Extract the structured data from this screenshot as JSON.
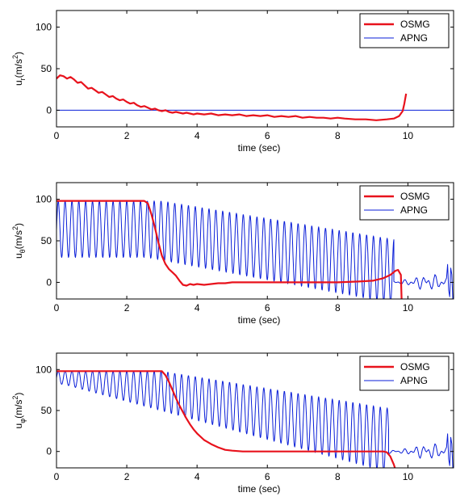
{
  "colors": {
    "osmg": "#e8121c",
    "apng": "#0a1ed8",
    "axis": "#000000",
    "background": "#ffffff"
  },
  "chart_data": [
    {
      "type": "line",
      "xlabel": "time (sec)",
      "ylabel": {
        "base": "u",
        "sub": "r",
        "unit": "(m/s",
        "sup": "2",
        "close": ")"
      },
      "xlim": [
        0,
        11.3
      ],
      "ylim": [
        -20,
        120
      ],
      "xticks": [
        "0",
        "2",
        "4",
        "6",
        "8",
        "10"
      ],
      "yticks": [
        "0",
        "50",
        "100"
      ],
      "legend": {
        "position": "top-right",
        "entries": [
          "OSMG",
          "APNG"
        ]
      },
      "series": [
        {
          "name": "OSMG",
          "points": [
            [
              0,
              38
            ],
            [
              0.1,
              42
            ],
            [
              0.2,
              41
            ],
            [
              0.3,
              38
            ],
            [
              0.4,
              40
            ],
            [
              0.5,
              37
            ],
            [
              0.6,
              33
            ],
            [
              0.7,
              34
            ],
            [
              0.8,
              30
            ],
            [
              0.9,
              26
            ],
            [
              1.0,
              27
            ],
            [
              1.1,
              24
            ],
            [
              1.2,
              21
            ],
            [
              1.3,
              22
            ],
            [
              1.4,
              19
            ],
            [
              1.5,
              16
            ],
            [
              1.6,
              17
            ],
            [
              1.7,
              14
            ],
            [
              1.8,
              12
            ],
            [
              1.9,
              13
            ],
            [
              2.0,
              10
            ],
            [
              2.1,
              8
            ],
            [
              2.2,
              9
            ],
            [
              2.3,
              6
            ],
            [
              2.4,
              4
            ],
            [
              2.5,
              5
            ],
            [
              2.6,
              3
            ],
            [
              2.7,
              1
            ],
            [
              2.8,
              2
            ],
            [
              2.9,
              0
            ],
            [
              3.0,
              -1
            ],
            [
              3.1,
              0
            ],
            [
              3.2,
              -2
            ],
            [
              3.3,
              -3
            ],
            [
              3.4,
              -2
            ],
            [
              3.6,
              -4
            ],
            [
              3.7,
              -3
            ],
            [
              3.9,
              -5
            ],
            [
              4.0,
              -4
            ],
            [
              4.2,
              -5
            ],
            [
              4.4,
              -4
            ],
            [
              4.6,
              -6
            ],
            [
              4.8,
              -5
            ],
            [
              5.0,
              -6
            ],
            [
              5.2,
              -5
            ],
            [
              5.4,
              -7
            ],
            [
              5.6,
              -6
            ],
            [
              5.8,
              -7
            ],
            [
              6.0,
              -6
            ],
            [
              6.2,
              -8
            ],
            [
              6.4,
              -7
            ],
            [
              6.6,
              -8
            ],
            [
              6.8,
              -7
            ],
            [
              7.0,
              -9
            ],
            [
              7.2,
              -8
            ],
            [
              7.4,
              -9
            ],
            [
              7.6,
              -9
            ],
            [
              7.8,
              -10
            ],
            [
              8.0,
              -9
            ],
            [
              8.2,
              -10
            ],
            [
              8.5,
              -11
            ],
            [
              8.8,
              -11
            ],
            [
              9.1,
              -12
            ],
            [
              9.4,
              -11
            ],
            [
              9.6,
              -10
            ],
            [
              9.75,
              -7
            ],
            [
              9.85,
              -1
            ],
            [
              9.9,
              8
            ],
            [
              9.95,
              20
            ]
          ]
        },
        {
          "name": "APNG",
          "points": [
            [
              0,
              0
            ],
            [
              11.3,
              0
            ]
          ]
        }
      ]
    },
    {
      "type": "line",
      "xlabel": "time (sec)",
      "ylabel": {
        "base": "u",
        "sub": "θ",
        "unit": "(m/s",
        "sup": "2",
        "close": ")"
      },
      "xlim": [
        0,
        11.3
      ],
      "ylim": [
        -20,
        120
      ],
      "xticks": [
        "0",
        "2",
        "4",
        "6",
        "8",
        "10"
      ],
      "yticks": [
        "0",
        "50",
        "100"
      ],
      "legend": {
        "position": "top-right",
        "entries": [
          "OSMG",
          "APNG"
        ]
      },
      "series": [
        {
          "name": "OSMG",
          "points": [
            [
              0,
              98
            ],
            [
              2.5,
              98
            ],
            [
              2.6,
              95
            ],
            [
              2.7,
              82
            ],
            [
              2.8,
              66
            ],
            [
              2.9,
              48
            ],
            [
              3.0,
              32
            ],
            [
              3.1,
              22
            ],
            [
              3.2,
              16
            ],
            [
              3.3,
              12
            ],
            [
              3.4,
              8
            ],
            [
              3.5,
              2
            ],
            [
              3.6,
              -3
            ],
            [
              3.7,
              -4
            ],
            [
              3.8,
              -2
            ],
            [
              3.9,
              -3
            ],
            [
              4.0,
              -2
            ],
            [
              4.2,
              -3
            ],
            [
              4.4,
              -2
            ],
            [
              4.6,
              -1
            ],
            [
              4.8,
              -1
            ],
            [
              5.0,
              0
            ],
            [
              6.0,
              0
            ],
            [
              7.0,
              0
            ],
            [
              8.0,
              0
            ],
            [
              8.6,
              1
            ],
            [
              9.0,
              2
            ],
            [
              9.3,
              5
            ],
            [
              9.5,
              9
            ],
            [
              9.65,
              14
            ],
            [
              9.72,
              15
            ],
            [
              9.8,
              9
            ],
            [
              9.82,
              -20
            ]
          ]
        },
        {
          "name": "APNG",
          "points": [],
          "model": {
            "start": 0.05,
            "period": 0.195,
            "decay_start": 2.55,
            "decay_end": 9.55,
            "floor_value": 30,
            "peak_value": 98,
            "tail_from": 9.6
          }
        }
      ]
    },
    {
      "type": "line",
      "xlabel": "time (sec)",
      "ylabel": {
        "base": "u",
        "sub": "φ",
        "unit": "(m/s",
        "sup": "2",
        "close": ")"
      },
      "xlim": [
        0,
        11.3
      ],
      "ylim": [
        -20,
        120
      ],
      "xticks": [
        "0",
        "2",
        "4",
        "6",
        "8",
        "10"
      ],
      "yticks": [
        "0",
        "50",
        "100"
      ],
      "legend": {
        "position": "top-right",
        "entries": [
          "OSMG",
          "APNG"
        ]
      },
      "series": [
        {
          "name": "OSMG",
          "points": [
            [
              0,
              98
            ],
            [
              3.0,
              98
            ],
            [
              3.1,
              93
            ],
            [
              3.2,
              85
            ],
            [
              3.3,
              75
            ],
            [
              3.4,
              65
            ],
            [
              3.5,
              56
            ],
            [
              3.6,
              48
            ],
            [
              3.7,
              40
            ],
            [
              3.8,
              33
            ],
            [
              3.9,
              27
            ],
            [
              4.0,
              22
            ],
            [
              4.2,
              14
            ],
            [
              4.4,
              9
            ],
            [
              4.6,
              5
            ],
            [
              4.8,
              2
            ],
            [
              5.0,
              1
            ],
            [
              5.3,
              0
            ],
            [
              6.0,
              0
            ],
            [
              7.0,
              0
            ],
            [
              8.0,
              0
            ],
            [
              9.0,
              0
            ],
            [
              9.3,
              0
            ],
            [
              9.4,
              -1
            ],
            [
              9.5,
              -6
            ],
            [
              9.6,
              -16
            ],
            [
              9.63,
              -20
            ]
          ]
        },
        {
          "name": "APNG",
          "points": [],
          "model": {
            "start": 0.05,
            "period": 0.195,
            "decay_start": 0.2,
            "decay_end": 9.4,
            "floor_value": 82,
            "peak_value": 98,
            "tail_from": 9.45
          }
        }
      ]
    }
  ]
}
